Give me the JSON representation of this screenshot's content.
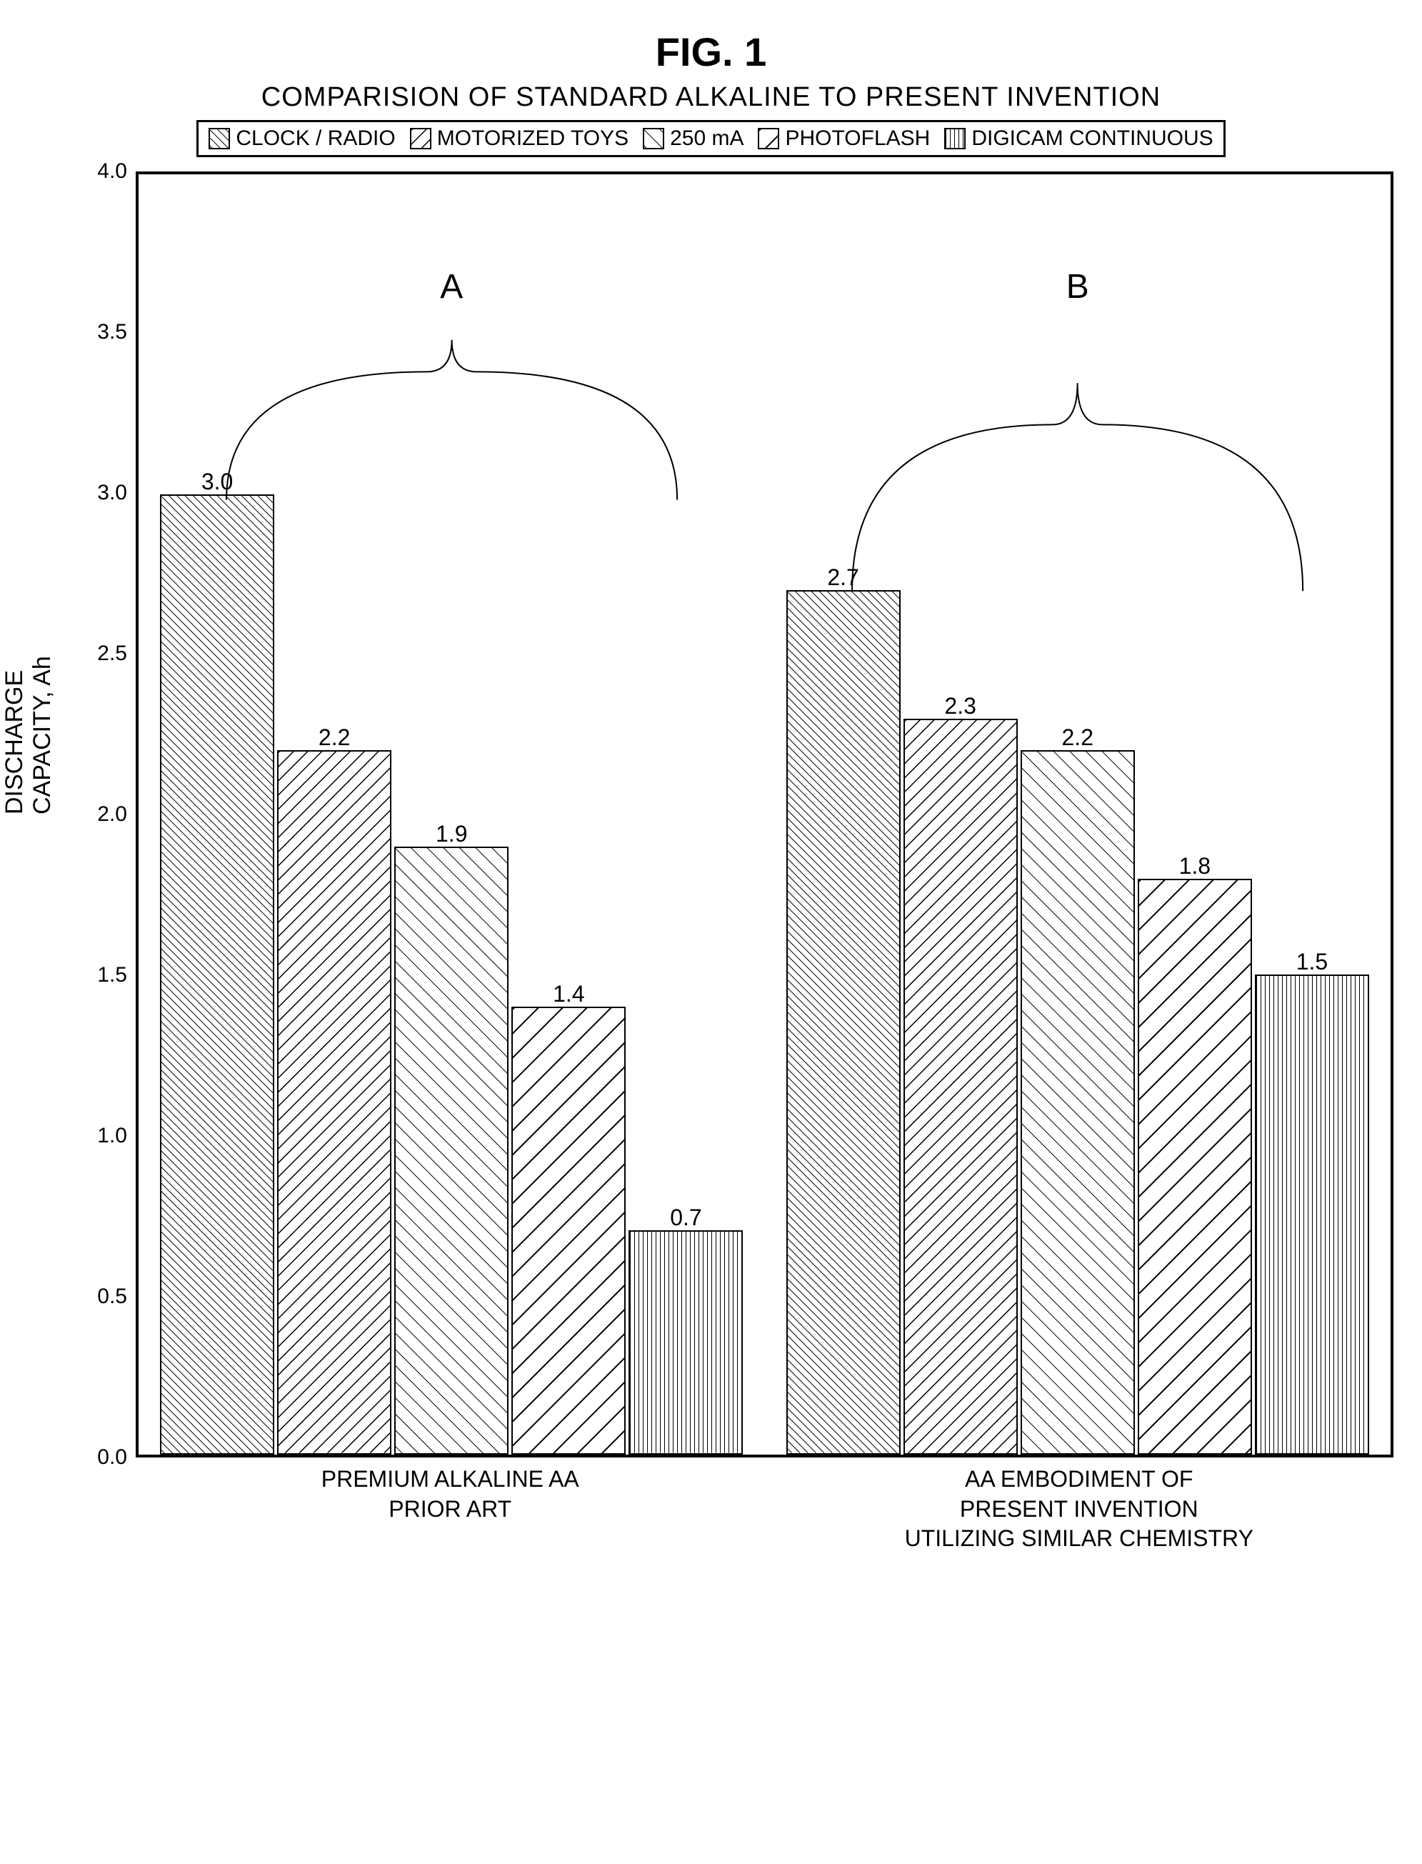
{
  "figureLabel": "FIG. 1",
  "title": "COMPARISION OF STANDARD ALKALINE TO PRESENT INVENTION",
  "ylabel": "DISCHARGE\nCAPACITY, Ah",
  "ylim": [
    0.0,
    4.0
  ],
  "ytick_step": 0.5,
  "yticks": [
    "0.0",
    "0.5",
    "1.0",
    "1.5",
    "2.0",
    "2.5",
    "3.0",
    "3.5",
    "4.0"
  ],
  "legend": [
    {
      "label": "CLOCK / RADIO",
      "pattern": "diag-nw-dense"
    },
    {
      "label": "MOTORIZED TOYS",
      "pattern": "diag-ne"
    },
    {
      "label": "250 mA",
      "pattern": "diag-nw-sparse"
    },
    {
      "label": "PHOTOFLASH",
      "pattern": "diag-ne-wide"
    },
    {
      "label": "DIGICAM CONTINUOUS",
      "pattern": "vertical"
    }
  ],
  "groups": [
    {
      "id": "A",
      "label": "PREMIUM ALKALINE AA\nPRIOR ART",
      "values": [
        3.0,
        2.2,
        1.9,
        1.4,
        0.7
      ]
    },
    {
      "id": "B",
      "label": "AA EMBODIMENT OF\nPRESENT INVENTION\nUTILIZING SIMILAR CHEMISTRY",
      "values": [
        2.7,
        2.3,
        2.2,
        1.8,
        1.5
      ]
    }
  ],
  "patterns": {
    "diag-nw-dense": {
      "angle": 135,
      "spacing": 8,
      "width": 2
    },
    "diag-ne": {
      "angle": 45,
      "spacing": 14,
      "width": 3
    },
    "diag-nw-sparse": {
      "angle": 135,
      "spacing": 16,
      "width": 2
    },
    "diag-ne-wide": {
      "angle": 45,
      "spacing": 24,
      "width": 4
    },
    "vertical": {
      "angle": 90,
      "spacing": 6,
      "width": 2
    }
  },
  "colors": {
    "background": "#ffffff",
    "stroke": "#000000",
    "grid": "#cccccc"
  },
  "bar_width_rel": 0.18,
  "font": {
    "family": "Arial, Helvetica, sans-serif",
    "fig_label_size": 56,
    "title_size": 38,
    "legend_size": 30,
    "tick_size": 30,
    "axis_label_size": 34,
    "bar_label_size": 32,
    "group_letter_size": 48
  }
}
